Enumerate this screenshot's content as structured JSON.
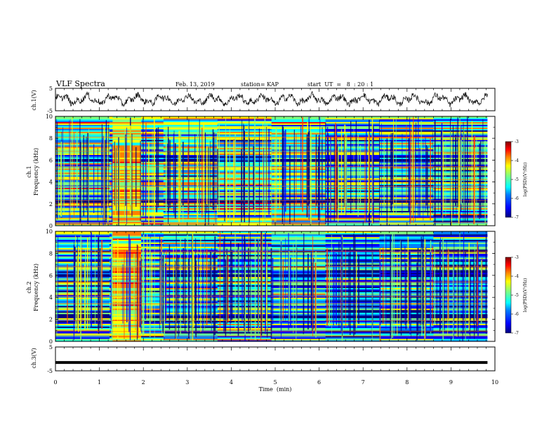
{
  "header": {
    "title": "VLF Spectra",
    "date": "Feb. 13, 2019",
    "station": "station= KAP",
    "start": "start  UT  =   8  : 20 : 1"
  },
  "colors": {
    "waveform": "#000000",
    "colormap": [
      "#00007f",
      "#0000ff",
      "#0080ff",
      "#00ffff",
      "#80ff80",
      "#ffff00",
      "#ff8000",
      "#ff0000",
      "#7f0000"
    ]
  },
  "chart_data": [
    {
      "type": "line",
      "id": "ch1-waveform",
      "ylabel": "ch.1(V)",
      "ylim": [
        -5,
        5
      ],
      "y_ticks": [
        "5",
        "-5"
      ],
      "xlim": [
        0,
        10
      ],
      "x_extent_min": 9.83,
      "description_values": "noisy oscillating voltage roughly between -3 and 3 V"
    },
    {
      "type": "heatmap",
      "id": "ch1-spectrogram",
      "ylabel": "ch.1\nFrequency  (kHz)",
      "ylabel_line1": "ch.1",
      "ylabel_line2": "Frequency  (kHz)",
      "ylim": [
        0,
        10
      ],
      "y_ticks": [
        "0",
        "2",
        "4",
        "6",
        "8",
        "10"
      ],
      "xlim": [
        0,
        10
      ],
      "x_extent_min": 9.83,
      "colorbar": {
        "label": "log(PSD)(V²/Hz)",
        "range": [
          -7,
          -3
        ],
        "ticks": [
          "-3",
          "-4",
          "-5",
          "-6",
          "-7"
        ]
      }
    },
    {
      "type": "heatmap",
      "id": "ch2-spectrogram",
      "ylabel": "ch.2\nFrequency  (kHz)",
      "ylabel_line1": "ch.2",
      "ylabel_line2": "Frequency  (kHz)",
      "ylim": [
        0,
        10
      ],
      "y_ticks": [
        "0",
        "2",
        "4",
        "6",
        "8",
        "10"
      ],
      "xlim": [
        0,
        10
      ],
      "x_extent_min": 9.83,
      "colorbar": {
        "label": "log(PSD)(V²/Hz)",
        "range": [
          -7,
          -3
        ],
        "ticks": [
          "-3",
          "-4",
          "-5",
          "-6",
          "-7"
        ]
      }
    },
    {
      "type": "line",
      "id": "ch3-waveform",
      "ylabel": "ch.3(V)",
      "ylim": [
        -5,
        5
      ],
      "y_ticks": [
        "5",
        "-5"
      ],
      "xlim": [
        0,
        10
      ],
      "x_extent_min": 9.83,
      "constant_value": -1.5
    }
  ],
  "xaxis": {
    "label": "Time  (min)",
    "ticks": [
      "0",
      "1",
      "2",
      "3",
      "4",
      "5",
      "6",
      "7",
      "8",
      "9",
      "10"
    ]
  }
}
